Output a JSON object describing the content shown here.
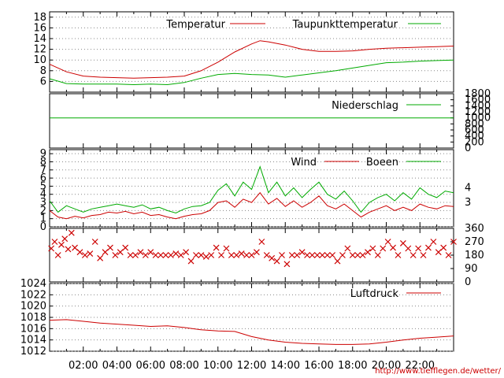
{
  "credit": "http://www.tiefflegen.de/wetter/",
  "colors": {
    "red": "#cc0000",
    "green": "#00aa00",
    "grid": "#888888"
  },
  "chart_data": [
    {
      "type": "line",
      "name": "temperature",
      "ylim": [
        4,
        19
      ],
      "yticks": [
        6,
        8,
        10,
        12,
        14,
        16,
        18
      ],
      "xlim": [
        0,
        24
      ],
      "series": [
        {
          "name": "Temperatur",
          "color": "#cc0000",
          "x": [
            0,
            1,
            2,
            3,
            4,
            5,
            6,
            7,
            8,
            9,
            10,
            11,
            12,
            12.5,
            13,
            14,
            15,
            16,
            17,
            18,
            19,
            20,
            21,
            22,
            23,
            24
          ],
          "values": [
            9.2,
            7.8,
            7.0,
            6.8,
            6.7,
            6.6,
            6.7,
            6.8,
            7.0,
            8.0,
            9.6,
            11.5,
            13.0,
            13.6,
            13.4,
            12.8,
            12.0,
            11.6,
            11.6,
            11.7,
            12.0,
            12.2,
            12.3,
            12.4,
            12.5,
            12.6
          ]
        },
        {
          "name": "Taupunkttemperatur",
          "color": "#00aa00",
          "x": [
            0,
            1,
            2,
            3,
            4,
            5,
            6,
            7,
            8,
            9,
            10,
            11,
            12,
            13,
            14,
            15,
            16,
            17,
            18,
            19,
            20,
            21,
            22,
            23,
            24
          ],
          "values": [
            6.5,
            5.6,
            5.5,
            5.5,
            5.5,
            5.4,
            5.5,
            5.4,
            5.8,
            6.6,
            7.3,
            7.5,
            7.3,
            7.2,
            6.8,
            7.2,
            7.6,
            8.0,
            8.5,
            9.0,
            9.5,
            9.6,
            9.8,
            9.9,
            10.0
          ]
        }
      ]
    },
    {
      "type": "line",
      "name": "precipitation",
      "ylim": [
        0,
        1800
      ],
      "yticks": [
        0,
        200,
        400,
        600,
        800,
        1000,
        1200,
        1400,
        1600,
        1800
      ],
      "xlim": [
        0,
        24
      ],
      "series": [
        {
          "name": "Niederschlag",
          "color": "#00aa00",
          "x": [
            0,
            24
          ],
          "values": [
            1000,
            1000
          ]
        }
      ]
    },
    {
      "type": "line",
      "name": "wind",
      "ylim": [
        0,
        9.5
      ],
      "yticks": [
        0,
        1,
        2,
        3,
        4,
        5,
        6,
        7,
        8,
        9
      ],
      "yticks_right": [
        "3",
        "4"
      ],
      "xlim": [
        0,
        24
      ],
      "series": [
        {
          "name": "Wind",
          "color": "#cc0000",
          "x": [
            0,
            0.5,
            1,
            1.5,
            2,
            2.5,
            3,
            3.5,
            4,
            4.5,
            5,
            5.5,
            6,
            6.5,
            7,
            7.5,
            8,
            8.5,
            9,
            9.5,
            10,
            10.5,
            11,
            11.5,
            12,
            12.5,
            13,
            13.5,
            14,
            14.5,
            15,
            15.5,
            16,
            16.5,
            17,
            17.5,
            18,
            18.5,
            19,
            19.5,
            20,
            20.5,
            21,
            21.5,
            22,
            22.5,
            23,
            23.5,
            24
          ],
          "values": [
            2.0,
            1.2,
            1.0,
            1.3,
            1.1,
            1.4,
            1.5,
            1.8,
            1.7,
            1.9,
            1.6,
            1.8,
            1.4,
            1.5,
            1.2,
            1.0,
            1.3,
            1.5,
            1.6,
            2.0,
            3.0,
            3.2,
            2.4,
            3.4,
            3.0,
            4.2,
            2.8,
            3.5,
            2.5,
            3.2,
            2.4,
            3.0,
            3.8,
            2.6,
            2.2,
            2.8,
            2.0,
            1.2,
            1.8,
            2.2,
            2.6,
            2.0,
            2.4,
            2.0,
            2.8,
            2.4,
            2.2,
            2.6,
            2.5
          ]
        },
        {
          "name": "Boeen",
          "color": "#00aa00",
          "x": [
            0,
            0.5,
            1,
            1.5,
            2,
            2.5,
            3,
            3.5,
            4,
            4.5,
            5,
            5.5,
            6,
            6.5,
            7,
            7.5,
            8,
            8.5,
            9,
            9.5,
            10,
            10.5,
            11,
            11.5,
            12,
            12.5,
            13,
            13.5,
            14,
            14.5,
            15,
            15.5,
            16,
            16.5,
            17,
            17.5,
            18,
            18.5,
            19,
            19.5,
            20,
            20.5,
            21,
            21.5,
            22,
            22.5,
            23,
            23.5,
            24
          ],
          "values": [
            3.2,
            1.8,
            2.6,
            2.2,
            1.8,
            2.2,
            2.4,
            2.6,
            2.8,
            2.6,
            2.4,
            2.7,
            2.2,
            2.4,
            2.0,
            1.7,
            2.2,
            2.5,
            2.6,
            3.0,
            4.5,
            5.3,
            3.8,
            5.5,
            4.6,
            7.4,
            4.2,
            5.5,
            3.8,
            4.8,
            3.6,
            4.6,
            5.5,
            4.0,
            3.4,
            4.4,
            3.2,
            1.8,
            3.0,
            3.6,
            4.0,
            3.2,
            4.2,
            3.4,
            4.8,
            4.0,
            3.6,
            4.4,
            4.2
          ]
        }
      ]
    },
    {
      "type": "scatter",
      "name": "wind-direction",
      "ylim": [
        0,
        360
      ],
      "yticks": [
        0,
        90,
        180,
        270,
        360
      ],
      "xlim": [
        0,
        24
      ],
      "series": [
        {
          "name": "",
          "color": "#cc0000",
          "x": [
            0.1,
            0.3,
            0.5,
            0.7,
            0.9,
            1.1,
            1.3,
            1.5,
            1.8,
            2.1,
            2.4,
            2.7,
            3.0,
            3.3,
            3.6,
            3.9,
            4.2,
            4.5,
            4.8,
            5.1,
            5.4,
            5.7,
            6.0,
            6.3,
            6.6,
            6.9,
            7.2,
            7.5,
            7.8,
            8.1,
            8.4,
            8.7,
            9.0,
            9.3,
            9.6,
            9.9,
            10.2,
            10.5,
            10.8,
            11.1,
            11.4,
            11.7,
            12.0,
            12.3,
            12.6,
            12.9,
            13.2,
            13.5,
            13.8,
            14.1,
            14.4,
            14.7,
            15.0,
            15.3,
            15.6,
            15.9,
            16.2,
            16.5,
            16.8,
            17.1,
            17.4,
            17.7,
            18.0,
            18.3,
            18.6,
            18.9,
            19.2,
            19.5,
            19.8,
            20.1,
            20.4,
            20.7,
            21.0,
            21.3,
            21.6,
            21.9,
            22.2,
            22.5,
            22.8,
            23.1,
            23.4,
            23.7,
            24.0
          ],
          "values": [
            225,
            270,
            180,
            250,
            290,
            220,
            330,
            230,
            200,
            180,
            190,
            270,
            160,
            200,
            230,
            180,
            200,
            230,
            180,
            180,
            200,
            180,
            200,
            180,
            180,
            180,
            180,
            190,
            180,
            200,
            140,
            180,
            180,
            170,
            180,
            230,
            180,
            225,
            180,
            180,
            190,
            180,
            180,
            200,
            270,
            180,
            160,
            140,
            180,
            120,
            180,
            180,
            200,
            180,
            180,
            180,
            180,
            180,
            180,
            140,
            180,
            225,
            180,
            180,
            180,
            200,
            225,
            180,
            225,
            270,
            230,
            180,
            260,
            225,
            180,
            225,
            180,
            230,
            270,
            200,
            230,
            180,
            270
          ]
        }
      ]
    },
    {
      "type": "line",
      "name": "pressure",
      "ylim": [
        1012,
        1024
      ],
      "yticks": [
        1012,
        1014,
        1016,
        1018,
        1020,
        1022,
        1024
      ],
      "xlim": [
        0,
        24
      ],
      "xticks": [
        2,
        4,
        6,
        8,
        10,
        12,
        14,
        16,
        18,
        20,
        22
      ],
      "xtick_labels": [
        "02:00",
        "04:00",
        "06:00",
        "08:00",
        "10:00",
        "12:00",
        "14:00",
        "16:00",
        "18:00",
        "20:00",
        "22:00"
      ],
      "series": [
        {
          "name": "Luftdruck",
          "color": "#cc0000",
          "x": [
            0,
            1,
            2,
            3,
            4,
            5,
            6,
            7,
            8,
            9,
            10,
            11,
            12,
            13,
            14,
            15,
            16,
            17,
            18,
            19,
            20,
            21,
            22,
            23,
            24
          ],
          "values": [
            1017.5,
            1017.6,
            1017.3,
            1017.0,
            1016.8,
            1016.6,
            1016.4,
            1016.5,
            1016.2,
            1015.8,
            1015.6,
            1015.5,
            1014.6,
            1014.0,
            1013.6,
            1013.4,
            1013.3,
            1013.2,
            1013.2,
            1013.3,
            1013.6,
            1014.0,
            1014.3,
            1014.5,
            1014.7
          ]
        }
      ]
    }
  ]
}
